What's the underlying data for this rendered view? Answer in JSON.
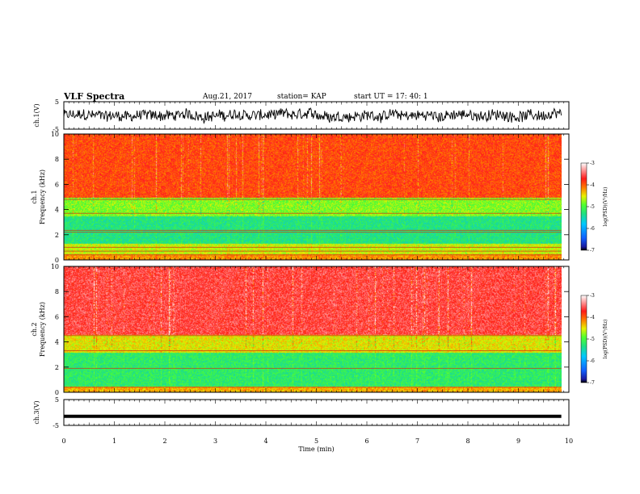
{
  "header": {
    "title": "VLF Spectra",
    "date": "Aug.21, 2017",
    "station": "station= KAP",
    "start": "start  UT =   17: 40: 1"
  },
  "chart_data": [
    {
      "type": "line",
      "name": "ch1-waveform",
      "ylabel": "ch.1(V)",
      "ylim": [
        -5,
        5
      ],
      "ytick_labels": [
        "-5",
        "5"
      ],
      "xlim": [
        0,
        10
      ],
      "x_end": 9.85,
      "mean": 0,
      "amplitude_range": [
        -3.5,
        3.5
      ],
      "color": "#000000"
    },
    {
      "type": "heatmap",
      "name": "ch1-spectrogram",
      "ylabel": "ch.1\nFrequency (kHz)",
      "ylim": [
        0,
        10
      ],
      "ytick_labels": [
        "0",
        "2",
        "4",
        "6",
        "8",
        "10"
      ],
      "xlim": [
        0,
        10
      ],
      "x_end": 9.85,
      "colorbar": {
        "label": "log(PSD)(V²/Hz)",
        "range": [
          -7,
          -3
        ],
        "tick_labels": [
          "-7",
          "-6",
          "-5",
          "-4",
          "-3"
        ]
      },
      "bands": [
        {
          "f_range": [
            0,
            0.5
          ],
          "log_psd": -4.2
        },
        {
          "f_range": [
            0.5,
            1.3
          ],
          "log_psd": -4.6
        },
        {
          "f_range": [
            1.3,
            3.5
          ],
          "log_psd": -5.3
        },
        {
          "f_range": [
            3.5,
            5.0
          ],
          "log_psd": -4.8
        },
        {
          "f_range": [
            5.0,
            10
          ],
          "log_psd": -3.9
        }
      ],
      "lines_khz": [
        0.4,
        0.7,
        1.0,
        2.2,
        2.35,
        3.7,
        4.8
      ]
    },
    {
      "type": "heatmap",
      "name": "ch2-spectrogram",
      "ylabel": "ch.2\nFrequency (kHz)",
      "ylim": [
        0,
        10
      ],
      "ytick_labels": [
        "0",
        "2",
        "4",
        "6",
        "8",
        "10"
      ],
      "xlim": [
        0,
        10
      ],
      "x_end": 9.85,
      "colorbar": {
        "label": "log(PSD)(V²/Hz)",
        "range": [
          -7,
          -3
        ],
        "tick_labels": [
          "-7",
          "-6",
          "-5",
          "-4",
          "-3"
        ]
      },
      "bands": [
        {
          "f_range": [
            0,
            0.5
          ],
          "log_psd": -4.3
        },
        {
          "f_range": [
            0.5,
            3.2
          ],
          "log_psd": -5.2
        },
        {
          "f_range": [
            3.2,
            4.6
          ],
          "log_psd": -4.5
        },
        {
          "f_range": [
            4.6,
            10
          ],
          "log_psd": -3.6
        }
      ],
      "lines_khz": [
        0.4,
        1.9,
        3.3,
        4.5
      ]
    },
    {
      "type": "line",
      "name": "ch3-waveform",
      "ylabel": "ch.3(V)",
      "ylim": [
        -5,
        5
      ],
      "ytick_labels": [
        "-5",
        "5"
      ],
      "xlim": [
        0,
        10
      ],
      "x_end": 9.85,
      "mean": -1.5,
      "color": "#000000"
    }
  ],
  "xaxis": {
    "label": "Time (min)",
    "range": [
      0,
      10
    ],
    "ticks": [
      0,
      1,
      2,
      3,
      4,
      5,
      6,
      7,
      8,
      9,
      10
    ]
  }
}
